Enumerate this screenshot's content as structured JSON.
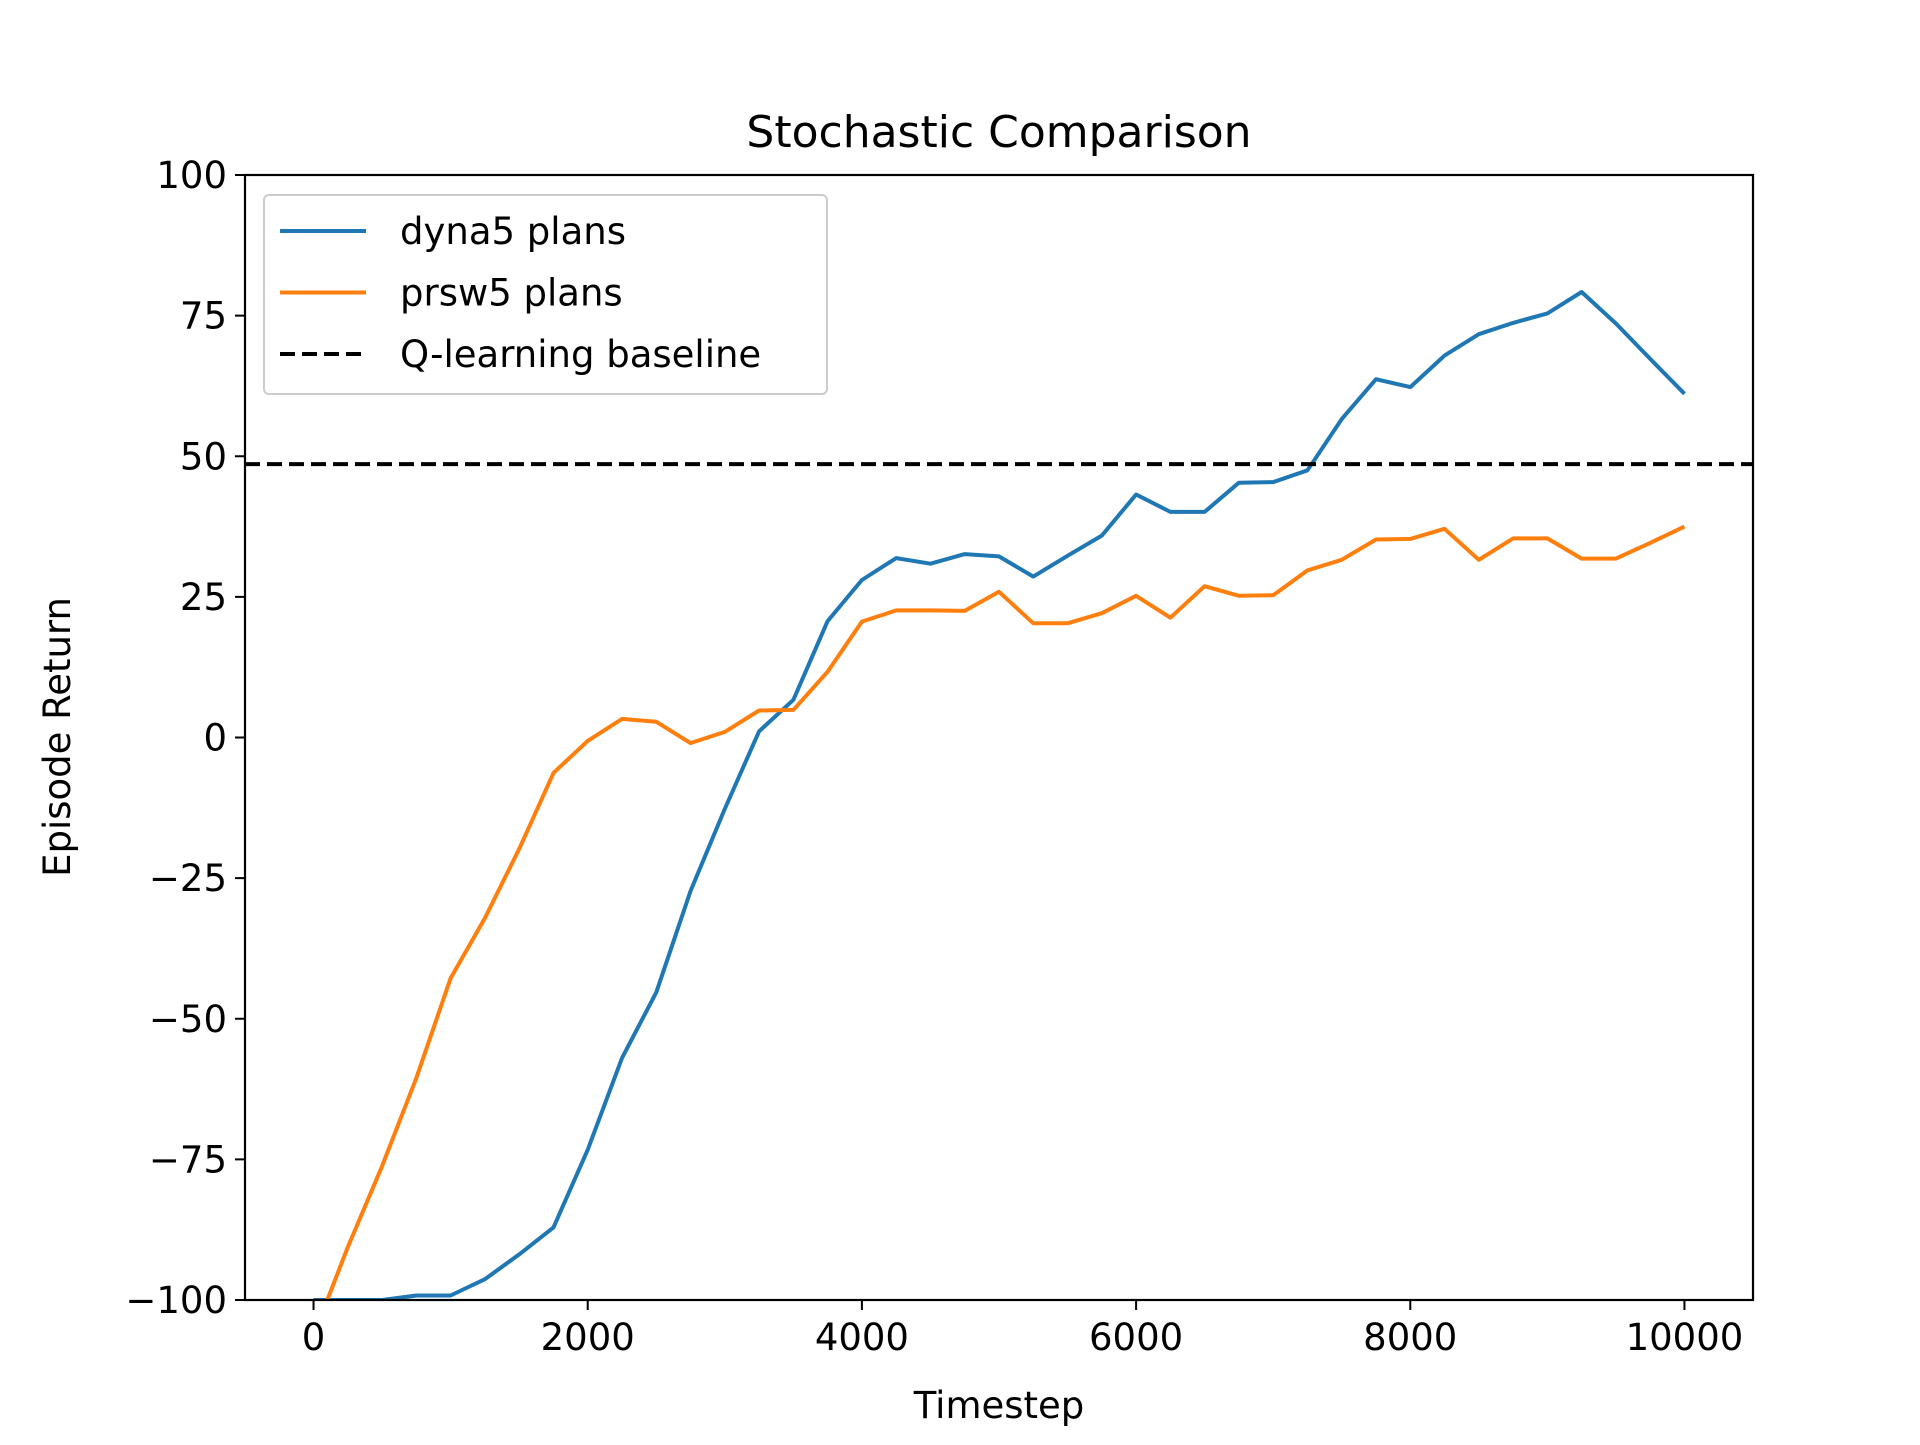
{
  "chart_data": {
    "type": "line",
    "title": "Stochastic Comparison",
    "xlabel": "Timestep",
    "ylabel": "Episode Return",
    "xlim": [
      -500,
      10500
    ],
    "ylim": [
      -100,
      100
    ],
    "xticks": [
      0,
      2000,
      4000,
      6000,
      8000,
      10000
    ],
    "xtick_labels": [
      "0",
      "2000",
      "4000",
      "6000",
      "8000",
      "10000"
    ],
    "yticks": [
      -100,
      -75,
      -50,
      -25,
      0,
      25,
      50,
      75,
      100
    ],
    "ytick_labels": [
      "−100",
      "−75",
      "−50",
      "−25",
      "0",
      "25",
      "50",
      "75",
      "100"
    ],
    "grid": false,
    "legend_position": "upper-left",
    "series": [
      {
        "name": "dyna5 plans",
        "color": "#1f77b4",
        "style": "solid",
        "x": [
          0,
          250,
          500,
          750,
          1000,
          1250,
          1500,
          1750,
          2000,
          2250,
          2500,
          2750,
          3000,
          3250,
          3500,
          3750,
          4000,
          4250,
          4500,
          4750,
          5000,
          5250,
          5500,
          5750,
          6000,
          6250,
          6500,
          6750,
          7000,
          7250,
          7500,
          7750,
          8000,
          8250,
          8500,
          8750,
          9000,
          9250,
          9500,
          9750,
          10000
        ],
        "y": [
          -100,
          -100,
          -100,
          -99.2,
          -99.2,
          -96.3,
          -91.9,
          -87.1,
          -73.3,
          -57,
          -45.3,
          -27.3,
          -12.7,
          1.1,
          6.7,
          20.7,
          28,
          31.9,
          30.9,
          32.6,
          32.2,
          28.6,
          32.3,
          35.9,
          43.2,
          40.1,
          40.1,
          45.3,
          45.4,
          47.5,
          56.6,
          63.7,
          62.3,
          67.9,
          71.7,
          73.7,
          75.4,
          79.2,
          73.6,
          67.3,
          61.1
        ]
      },
      {
        "name": "prsw5 plans",
        "color": "#ff7f0e",
        "style": "solid",
        "x": [
          100,
          250,
          500,
          750,
          1000,
          1250,
          1500,
          1750,
          2000,
          2250,
          2500,
          2750,
          3000,
          3250,
          3500,
          3750,
          4000,
          4250,
          4500,
          4750,
          5000,
          5250,
          5500,
          5750,
          6000,
          6250,
          6500,
          6750,
          7000,
          7250,
          7500,
          7750,
          8000,
          8250,
          8500,
          8750,
          9000,
          9250,
          9500,
          9750,
          10000
        ],
        "y": [
          -100,
          -90.6,
          -76.2,
          -60.5,
          -42.8,
          -32.1,
          -19.8,
          -6.3,
          -0.6,
          3.3,
          2.8,
          -1,
          1,
          4.8,
          4.9,
          11.7,
          20.6,
          22.6,
          22.6,
          22.5,
          25.9,
          20.3,
          20.3,
          22.1,
          25.2,
          21.3,
          26.9,
          25.2,
          25.3,
          29.7,
          31.6,
          35.2,
          35.3,
          37.1,
          31.6,
          35.4,
          35.4,
          31.8,
          31.8,
          34.6,
          37.5
        ]
      },
      {
        "name": "Q-learning baseline",
        "color": "#000000",
        "style": "dashed",
        "x": [
          -500,
          10500
        ],
        "y": [
          48.6,
          48.6
        ]
      }
    ]
  }
}
